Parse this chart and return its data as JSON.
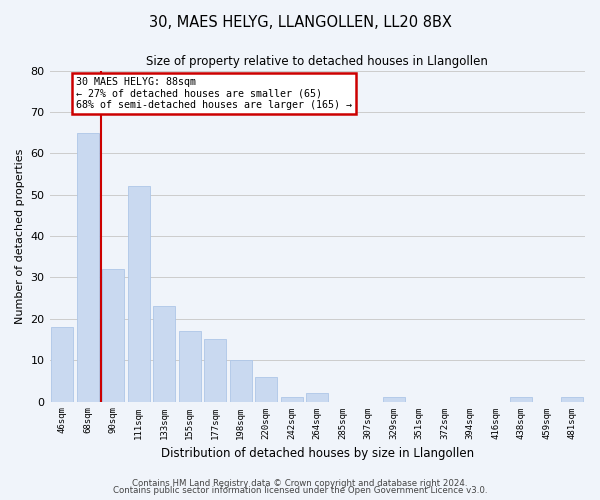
{
  "title": "30, MAES HELYG, LLANGOLLEN, LL20 8BX",
  "subtitle": "Size of property relative to detached houses in Llangollen",
  "xlabel": "Distribution of detached houses by size in Llangollen",
  "ylabel": "Number of detached properties",
  "bar_labels": [
    "46sqm",
    "68sqm",
    "90sqm",
    "111sqm",
    "133sqm",
    "155sqm",
    "177sqm",
    "198sqm",
    "220sqm",
    "242sqm",
    "264sqm",
    "285sqm",
    "307sqm",
    "329sqm",
    "351sqm",
    "372sqm",
    "394sqm",
    "416sqm",
    "438sqm",
    "459sqm",
    "481sqm"
  ],
  "bar_values": [
    18,
    65,
    32,
    52,
    23,
    17,
    15,
    10,
    6,
    1,
    2,
    0,
    0,
    1,
    0,
    0,
    0,
    0,
    1,
    0,
    1
  ],
  "bar_color": "#c9d9f0",
  "bar_edge_color": "#aec6e8",
  "annotation_line1": "30 MAES HELYG: 88sqm",
  "annotation_line2": "← 27% of detached houses are smaller (65)",
  "annotation_line3": "68% of semi-detached houses are larger (165) →",
  "annotation_box_color": "#ffffff",
  "annotation_border_color": "#cc0000",
  "vline_color": "#cc0000",
  "footer1": "Contains HM Land Registry data © Crown copyright and database right 2024.",
  "footer2": "Contains public sector information licensed under the Open Government Licence v3.0.",
  "ylim": [
    0,
    80
  ],
  "yticks": [
    0,
    10,
    20,
    30,
    40,
    50,
    60,
    70,
    80
  ],
  "grid_color": "#cccccc",
  "background_color": "#f0f4fa"
}
